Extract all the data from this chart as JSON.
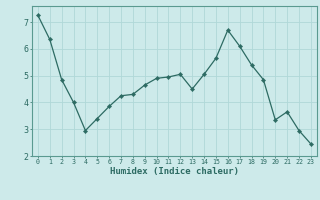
{
  "x": [
    0,
    1,
    2,
    3,
    4,
    5,
    6,
    7,
    8,
    9,
    10,
    11,
    12,
    13,
    14,
    15,
    16,
    17,
    18,
    19,
    20,
    21,
    22,
    23
  ],
  "y": [
    7.25,
    6.35,
    4.85,
    4.0,
    2.95,
    3.4,
    3.85,
    4.25,
    4.3,
    4.65,
    4.9,
    4.95,
    5.05,
    4.5,
    5.05,
    5.65,
    6.7,
    6.1,
    5.4,
    4.85,
    3.35,
    3.65,
    2.95,
    2.45
  ],
  "xlabel": "Humidex (Indice chaleur)",
  "xlim": [
    -0.5,
    23.5
  ],
  "ylim": [
    2.0,
    7.6
  ],
  "yticks": [
    2,
    3,
    4,
    5,
    6,
    7
  ],
  "xticks": [
    0,
    1,
    2,
    3,
    4,
    5,
    6,
    7,
    8,
    9,
    10,
    11,
    12,
    13,
    14,
    15,
    16,
    17,
    18,
    19,
    20,
    21,
    22,
    23
  ],
  "bg_color": "#cdeaea",
  "line_color": "#2d6b63",
  "marker_color": "#2d6b63",
  "grid_color": "#b0d8d8",
  "tick_color": "#2d6b63",
  "label_color": "#2d6b63",
  "spine_color": "#5a9a90"
}
